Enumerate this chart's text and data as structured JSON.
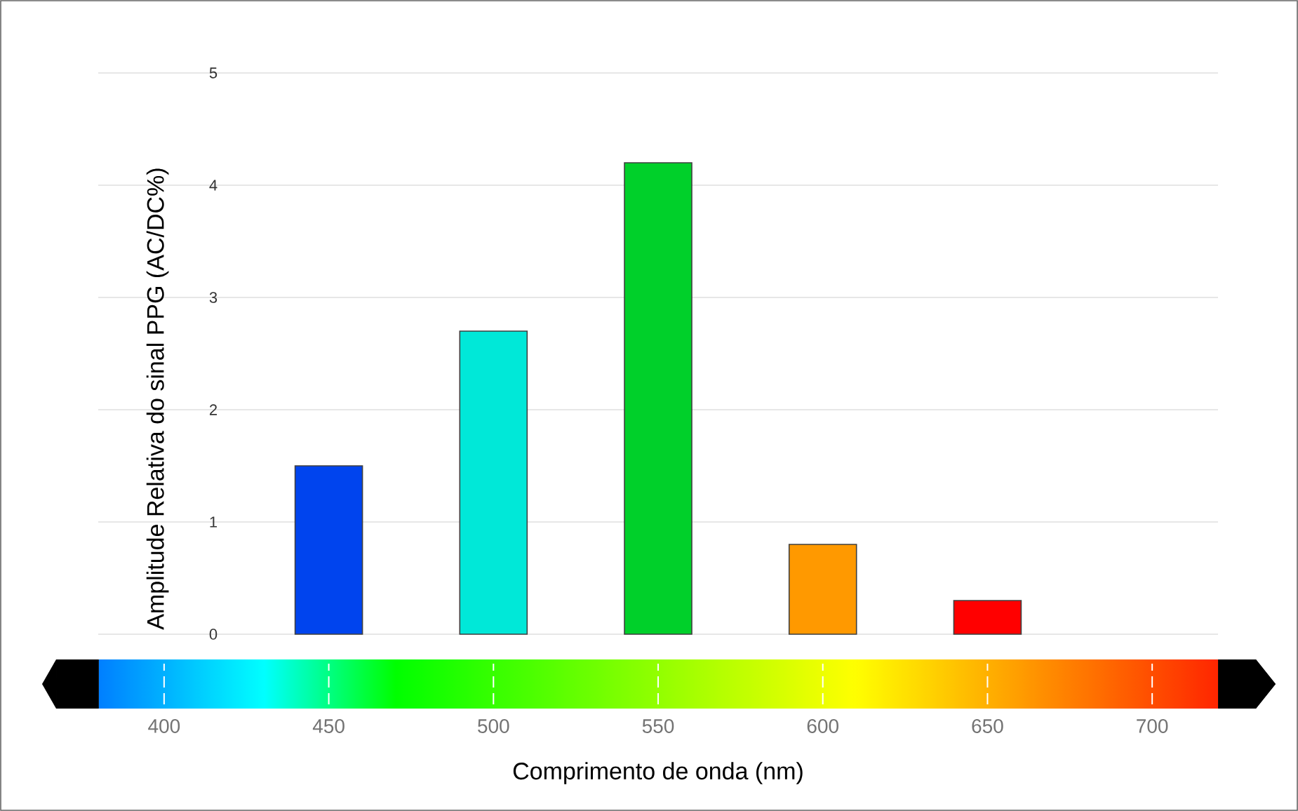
{
  "chart_data": {
    "type": "bar",
    "xlabel": "Comprimento de onda (nm)",
    "ylabel": "Amplitude Relativa do sinal PPG (AC/DC%)",
    "x": [
      450,
      500,
      550,
      600,
      650
    ],
    "values": [
      1.5,
      2.7,
      4.2,
      0.8,
      0.3
    ],
    "colors": [
      "#0044ee",
      "#00e8d8",
      "#00d02a",
      "#ff9900",
      "#ff0000"
    ],
    "xlim": [
      380,
      720
    ],
    "xticks": [
      400,
      450,
      500,
      550,
      600,
      650,
      700
    ],
    "ylim": [
      0,
      5
    ],
    "yticks": [
      0,
      1,
      2,
      3,
      4,
      5
    ],
    "grid": "y"
  }
}
